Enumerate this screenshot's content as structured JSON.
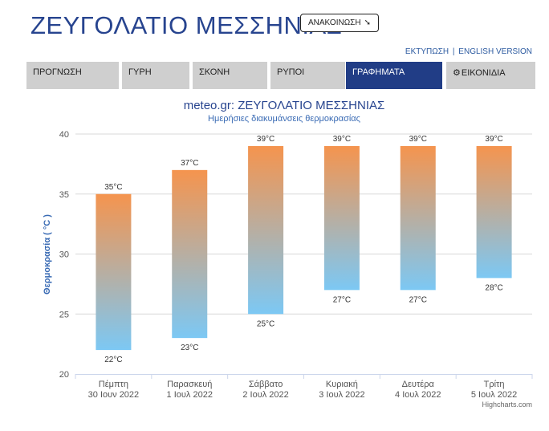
{
  "header": {
    "title": "ΖΕΥΓΟΛΑΤΙΟ ΜΕΣΣΗΝΙΑΣ",
    "announce_label": "ΑΝΑΚΟΙΝΩΣΗ",
    "announce_icon": "right-arrow-icon",
    "print_link": "ΕΚΤΥΠΩΣΗ",
    "link_separator": "|",
    "english_link": "ENGLISH VERSION"
  },
  "tabs": [
    {
      "label": "ΠΡΟΓΝΩΣΗ",
      "active": false
    },
    {
      "label": "ΓΥΡΗ",
      "active": false
    },
    {
      "label": "ΣΚΟΝΗ",
      "active": false
    },
    {
      "label": "ΡΥΠΟΙ",
      "active": false
    },
    {
      "label": "ΓΡΑΦΗΜΑΤΑ",
      "active": true
    },
    {
      "label": "ΕΙΚΟΝΙΔΙΑ",
      "active": false,
      "icon": "gear-icon"
    }
  ],
  "chart_data": {
    "type": "columnrange",
    "title": "meteo.gr: ΖΕΥΓΟΛΑΤΙΟ ΜΕΣΣΗΝΙΑΣ",
    "subtitle": "Ημερήσιες διακυμάνσεις θερμοκρασίας",
    "ylabel": "Θερμοκρασία ( °C )",
    "xlabel": "",
    "ylim": [
      20,
      40
    ],
    "yticks": [
      20,
      25,
      30,
      35,
      40
    ],
    "grid": true,
    "unit": "°C",
    "categories": [
      {
        "day": "Πέμπτη",
        "date": "30 Ιουν 2022"
      },
      {
        "day": "Παρασκευή",
        "date": "1 Ιουλ 2022"
      },
      {
        "day": "Σάββατο",
        "date": "2 Ιουλ 2022"
      },
      {
        "day": "Κυριακή",
        "date": "3 Ιουλ 2022"
      },
      {
        "day": "Δευτέρα",
        "date": "4 Ιουλ 2022"
      },
      {
        "day": "Τρίτη",
        "date": "5 Ιουλ 2022"
      }
    ],
    "low": [
      22,
      23,
      25,
      27,
      27,
      28
    ],
    "high": [
      35,
      37,
      39,
      39,
      39,
      39
    ],
    "colors": {
      "high": "#f5944e",
      "low": "#7cc8f4",
      "grid": "#d8d8d8",
      "axis": "#ccd6eb"
    },
    "credits": "Highcharts.com"
  }
}
